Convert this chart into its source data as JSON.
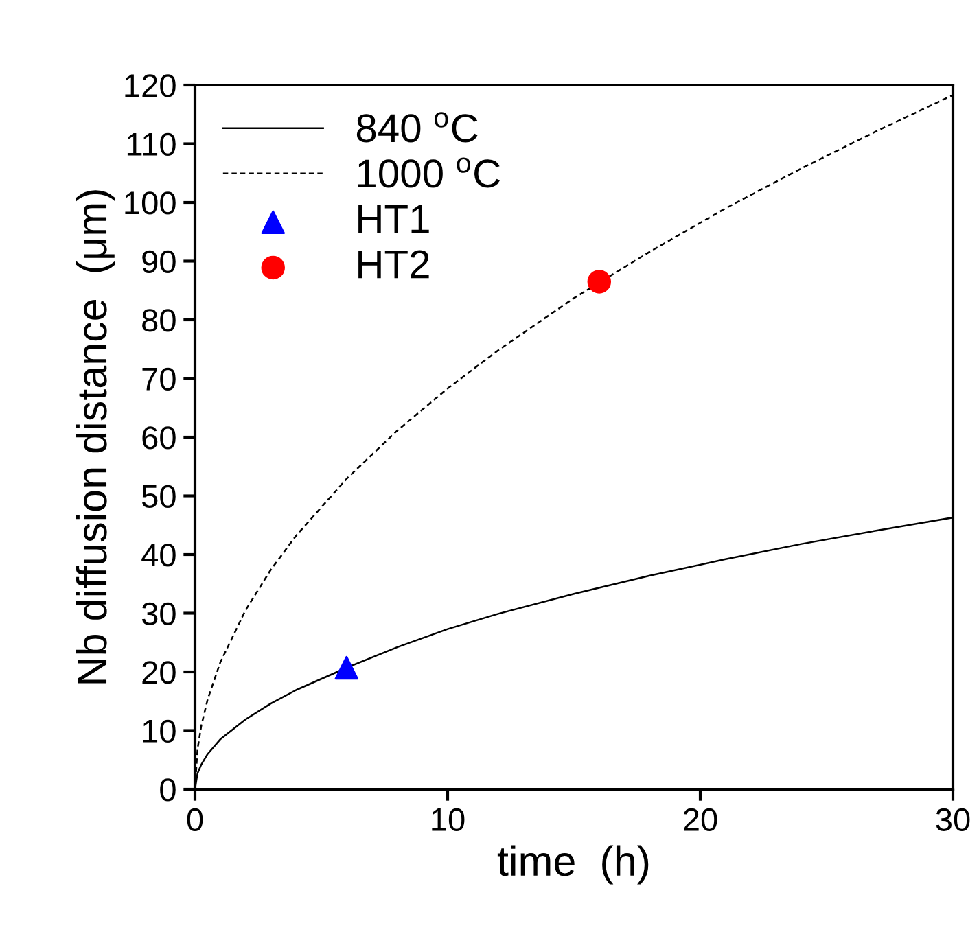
{
  "chart_data": {
    "type": "line",
    "xlabel": "time  (h)",
    "ylabel": "Nb diffusion distance  (μm)",
    "xlim": [
      0,
      30
    ],
    "xticks": [
      0,
      10,
      20,
      30
    ],
    "ylim": [
      0,
      120
    ],
    "yticks": [
      0,
      10,
      20,
      30,
      40,
      50,
      60,
      70,
      80,
      90,
      100,
      110,
      120
    ],
    "grid": false,
    "legend": "top left",
    "series": [
      {
        "name": "840 $^{o}$C",
        "line_style": "solid",
        "color": "#000000",
        "x": [
          0,
          0.1,
          0.25,
          0.5,
          1,
          2,
          3,
          4,
          6,
          8,
          10,
          12,
          15,
          18,
          21,
          24,
          27,
          30
        ],
        "values": [
          0,
          2.7,
          4.2,
          6.0,
          8.5,
          11.9,
          14.6,
          16.9,
          20.7,
          24.2,
          27.3,
          29.9,
          33.3,
          36.4,
          39.2,
          41.8,
          44.1,
          46.3
        ]
      },
      {
        "name": "1000 $^{o}$C",
        "line_style": "dashed",
        "color": "#000000",
        "x": [
          0,
          0.1,
          0.25,
          0.5,
          1,
          2,
          3,
          4,
          6,
          8,
          10,
          12,
          15,
          18,
          21,
          24,
          27,
          30
        ],
        "values": [
          0,
          6.8,
          10.8,
          15.3,
          21.6,
          30.5,
          37.4,
          43.2,
          52.9,
          61.1,
          68.3,
          74.8,
          83.7,
          91.6,
          99.0,
          105.8,
          112.2,
          118.3
        ]
      },
      {
        "name": "HT1",
        "type": "scatter",
        "marker": "triangle",
        "color": "#0000ff",
        "x": [
          6
        ],
        "values": [
          20.7
        ]
      },
      {
        "name": "HT2",
        "type": "scatter",
        "marker": "circle",
        "color": "#ff0000",
        "x": [
          16
        ],
        "values": [
          86.5
        ]
      }
    ]
  }
}
